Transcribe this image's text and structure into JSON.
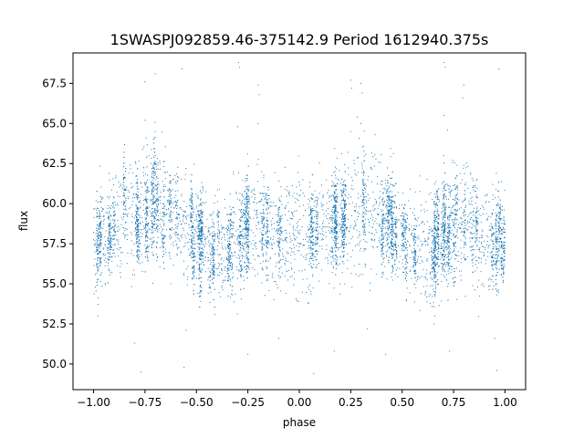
{
  "chart_data": {
    "type": "scatter",
    "title": "1SWASPJ092859.46-375142.9 Period 1612940.375s",
    "xlabel": "phase",
    "ylabel": "flux",
    "xlim": [
      -1.1,
      1.1
    ],
    "ylim": [
      48.4,
      69.4
    ],
    "xticks": [
      -1.0,
      -0.75,
      -0.5,
      -0.25,
      0.0,
      0.25,
      0.5,
      0.75,
      1.0
    ],
    "xtick_labels": [
      "−1.00",
      "−0.75",
      "−0.50",
      "−0.25",
      "0.00",
      "0.25",
      "0.50",
      "0.75",
      "1.00"
    ],
    "yticks": [
      50.0,
      52.5,
      55.0,
      57.5,
      60.0,
      62.5,
      65.0,
      67.5
    ],
    "ytick_labels": [
      "50.0",
      "52.5",
      "55.0",
      "57.5",
      "60.0",
      "62.5",
      "65.0",
      "67.5"
    ],
    "grid": false,
    "marker_color": "#1f77b4",
    "phase_profile": {
      "phase": [
        0.0,
        0.05,
        0.1,
        0.15,
        0.2,
        0.25,
        0.3,
        0.35,
        0.4,
        0.45,
        0.5,
        0.55,
        0.6,
        0.65,
        0.7,
        0.75,
        0.8,
        0.85,
        0.9,
        0.95,
        1.0
      ],
      "flux_center": [
        58.0,
        57.8,
        58.5,
        59.0,
        59.2,
        59.5,
        59.8,
        59.6,
        59.2,
        58.8,
        58.0,
        57.5,
        57.0,
        57.2,
        58.2,
        59.0,
        59.0,
        58.5,
        58.0,
        57.8,
        58.0
      ],
      "flux_spread": [
        2.2,
        2.2,
        2.0,
        2.2,
        2.4,
        2.6,
        2.6,
        2.2,
        2.0,
        2.0,
        2.0,
        2.0,
        2.0,
        2.2,
        2.4,
        2.6,
        2.4,
        2.2,
        2.2,
        2.2,
        2.2
      ]
    },
    "outlier_points": [
      {
        "x": 0.705,
        "y": 68.8
      },
      {
        "x": 0.71,
        "y": 68.5
      },
      {
        "x": -0.295,
        "y": 68.8
      },
      {
        "x": -0.29,
        "y": 68.5
      },
      {
        "x": 0.25,
        "y": 67.7
      },
      {
        "x": 0.255,
        "y": 67.2
      },
      {
        "x": 0.3,
        "y": 67.5
      },
      {
        "x": 0.305,
        "y": 66.9
      },
      {
        "x": -0.75,
        "y": 67.6
      },
      {
        "x": -0.7,
        "y": 68.1
      },
      {
        "x": -0.2,
        "y": 67.4
      },
      {
        "x": -0.195,
        "y": 66.8
      },
      {
        "x": 0.8,
        "y": 67.4
      },
      {
        "x": 0.795,
        "y": 66.6
      },
      {
        "x": 0.97,
        "y": 68.4
      },
      {
        "x": -0.57,
        "y": 68.4
      },
      {
        "x": 0.3,
        "y": 65.0
      },
      {
        "x": -0.75,
        "y": 65.2
      },
      {
        "x": -0.7,
        "y": 64.5
      },
      {
        "x": -0.3,
        "y": 64.8
      },
      {
        "x": 0.705,
        "y": 65.5
      },
      {
        "x": 0.72,
        "y": 64.6
      },
      {
        "x": 0.25,
        "y": 64.5
      },
      {
        "x": -0.2,
        "y": 65.0
      },
      {
        "x": -0.8,
        "y": 51.3
      },
      {
        "x": -0.77,
        "y": 49.5
      },
      {
        "x": -0.55,
        "y": 52.1
      },
      {
        "x": -0.56,
        "y": 49.8
      },
      {
        "x": -0.25,
        "y": 50.6
      },
      {
        "x": -0.1,
        "y": 51.6
      },
      {
        "x": 0.07,
        "y": 49.4
      },
      {
        "x": 0.17,
        "y": 50.8
      },
      {
        "x": 0.33,
        "y": 52.2
      },
      {
        "x": 0.42,
        "y": 50.6
      },
      {
        "x": 0.73,
        "y": 50.8
      },
      {
        "x": 0.96,
        "y": 49.6
      },
      {
        "x": -0.98,
        "y": 53.0
      },
      {
        "x": 0.95,
        "y": 51.6
      }
    ]
  }
}
